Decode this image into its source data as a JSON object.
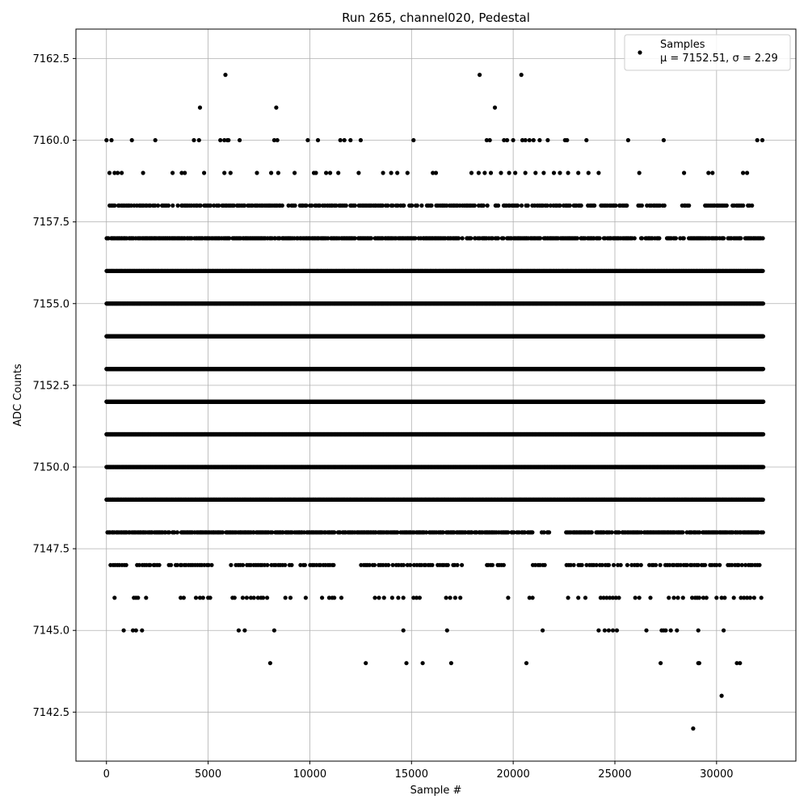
{
  "chart_data": {
    "type": "scatter",
    "title": "Run 265, channel020, Pedestal",
    "xlabel": "Sample #",
    "ylabel": "ADC Counts",
    "xlim": [
      -1500,
      33900
    ],
    "ylim": [
      7141.0,
      7163.4
    ],
    "xticks": [
      0,
      5000,
      10000,
      15000,
      20000,
      25000,
      30000
    ],
    "xtick_labels": [
      "0",
      "5000",
      "10000",
      "15000",
      "20000",
      "25000",
      "30000"
    ],
    "yticks": [
      7142.5,
      7145.0,
      7147.5,
      7150.0,
      7152.5,
      7155.0,
      7157.5,
      7160.0,
      7162.5
    ],
    "ytick_labels": [
      "7142.5",
      "7145.0",
      "7147.5",
      "7150.0",
      "7152.5",
      "7155.0",
      "7157.5",
      "7160.0",
      "7162.5"
    ],
    "grid": true,
    "legend_position": "top-right",
    "series": [
      {
        "name": "Samples",
        "stats_label": "μ = 7152.51, σ = 2.29",
        "color": "#000000",
        "marker": "circle",
        "x_range": [
          0,
          32300
        ],
        "bands": [
          {
            "y": 7162,
            "points": [
              5850,
              18350,
              20400
            ]
          },
          {
            "y": 7161,
            "points": [
              4600,
              8350,
              19100
            ]
          },
          {
            "y": 7160,
            "points": [
              0,
              250,
              1250,
              2400,
              4300,
              4550,
              5600,
              5800,
              5950,
              6000,
              6550,
              8250,
              8400,
              9900,
              10400,
              11500,
              11700,
              12000,
              12500,
              15100,
              18700,
              18850,
              19550,
              19700,
              20000,
              20450,
              20600,
              20800,
              21000,
              21300,
              21700,
              22550,
              22650,
              23600,
              25650,
              27400,
              32000,
              32250
            ]
          },
          {
            "y": 7159,
            "points": [
              150,
              400,
              550,
              750,
              1800,
              3250,
              3700,
              3850,
              4800,
              5800,
              6100,
              7400,
              8100,
              8450,
              9250,
              10200,
              10300,
              10800,
              11000,
              11400,
              12400,
              13600,
              14000,
              14300,
              14800,
              16050,
              16200,
              17950,
              18300,
              18600,
              18900,
              19400,
              19800,
              20100,
              20600,
              21100,
              21500,
              22000,
              22300,
              22700,
              23200,
              23700,
              24200,
              26200,
              28400,
              29600,
              29800,
              31300,
              31500
            ]
          },
          {
            "y": 7158,
            "dense_ranges": [
              [
                0,
                31800
              ]
            ],
            "step": 80,
            "gaps": [
              [
                24000,
                24300
              ],
              [
                25700,
                26000
              ],
              [
                27500,
                28200
              ],
              [
                28700,
                29400
              ],
              [
                30500,
                30700
              ]
            ]
          },
          {
            "y": 7157,
            "dense_ranges": [
              [
                0,
                32300
              ]
            ],
            "step": 55,
            "gaps": [
              [
                26000,
                26200
              ],
              [
                27200,
                27500
              ],
              [
                28000,
                28200
              ],
              [
                28400,
                28600
              ]
            ]
          },
          {
            "y": 7156,
            "dense_ranges": [
              [
                0,
                32300
              ]
            ],
            "step": 30
          },
          {
            "y": 7155,
            "dense_ranges": [
              [
                0,
                32300
              ]
            ],
            "step": 22
          },
          {
            "y": 7154,
            "dense_ranges": [
              [
                0,
                32300
              ]
            ],
            "step": 12
          },
          {
            "y": 7153,
            "dense_ranges": [
              [
                0,
                32300
              ]
            ],
            "step": 12
          },
          {
            "y": 7152,
            "dense_ranges": [
              [
                0,
                32300
              ]
            ],
            "step": 8
          },
          {
            "y": 7151,
            "dense_ranges": [
              [
                0,
                32300
              ]
            ],
            "step": 12
          },
          {
            "y": 7150,
            "dense_ranges": [
              [
                0,
                32300
              ]
            ],
            "step": 15
          },
          {
            "y": 7149,
            "dense_ranges": [
              [
                0,
                32300
              ]
            ],
            "step": 30
          },
          {
            "y": 7148,
            "dense_ranges": [
              [
                0,
                32300
              ]
            ],
            "step": 55,
            "gaps": [
              [
                21000,
                21400
              ],
              [
                21800,
                22600
              ]
            ]
          },
          {
            "y": 7147,
            "dense_ranges": [
              [
                200,
                32300
              ]
            ],
            "step": 110,
            "gaps": [
              [
                1000,
                1300
              ],
              [
                2600,
                3000
              ],
              [
                5500,
                6100
              ],
              [
                9200,
                9500
              ],
              [
                11300,
                12500
              ],
              [
                17500,
                18700
              ],
              [
                19700,
                20900
              ],
              [
                21600,
                22600
              ],
              [
                25300,
                25600
              ]
            ]
          },
          {
            "y": 7146,
            "points": [
              400,
              1350,
              1450,
              1550,
              1950,
              3650,
              3800,
              4400,
              4600,
              4750,
              5000,
              5100,
              6200,
              6300,
              6700,
              6900,
              7100,
              7250,
              7450,
              7600,
              7700,
              7900,
              8800,
              9050,
              9800,
              10600,
              10950,
              11100,
              11200,
              11550,
              13200,
              13400,
              13650,
              14050,
              14350,
              14600,
              15100,
              15250,
              15400,
              16700,
              16900,
              17150,
              17400,
              19750,
              20800,
              20950,
              22700,
              23200,
              23550,
              24300,
              24450,
              24600,
              24750,
              24900,
              25050,
              25200,
              26000,
              26200,
              26750,
              27650,
              27900,
              28100,
              28350,
              28800,
              28950,
              29050,
              29150,
              29350,
              29500,
              30000,
              30250,
              30400,
              30850,
              31200,
              31350,
              31500,
              31650,
              31850,
              32200
            ]
          },
          {
            "y": 7145,
            "points": [
              850,
              1300,
              1450,
              1750,
              6500,
              6800,
              8250,
              14600,
              16750,
              21450,
              24200,
              24500,
              24700,
              24900,
              25100,
              26550,
              27300,
              27400,
              27500,
              27750,
              28050,
              29100,
              30350
            ]
          },
          {
            "y": 7144,
            "points": [
              8050,
              12750,
              14750,
              15550,
              16950,
              20650,
              27250,
              29100,
              29150,
              31000,
              31150
            ]
          },
          {
            "y": 7143,
            "points": [
              30250
            ]
          },
          {
            "y": 7142,
            "points": [
              28850
            ]
          }
        ]
      }
    ]
  }
}
